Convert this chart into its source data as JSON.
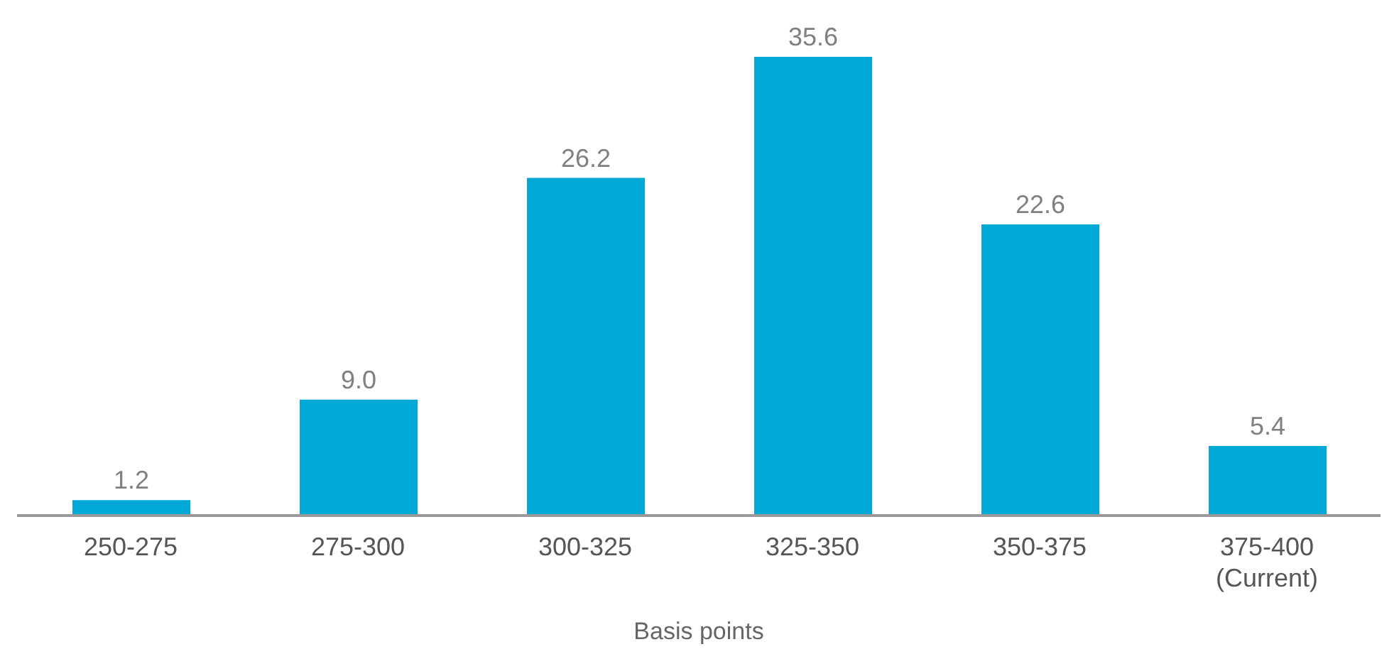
{
  "chart_data": {
    "type": "bar",
    "xlabel": "Basis points",
    "categories": [
      "250-275",
      "275-300",
      "300-325",
      "325-350",
      "350-375",
      "375-400\n(Current)"
    ],
    "values": [
      1.2,
      9.0,
      26.2,
      35.6,
      22.6,
      5.4
    ],
    "value_labels": [
      "1.2",
      "9.0",
      "26.2",
      "35.6",
      "22.6",
      "5.4"
    ],
    "color": "#00a8d6"
  }
}
